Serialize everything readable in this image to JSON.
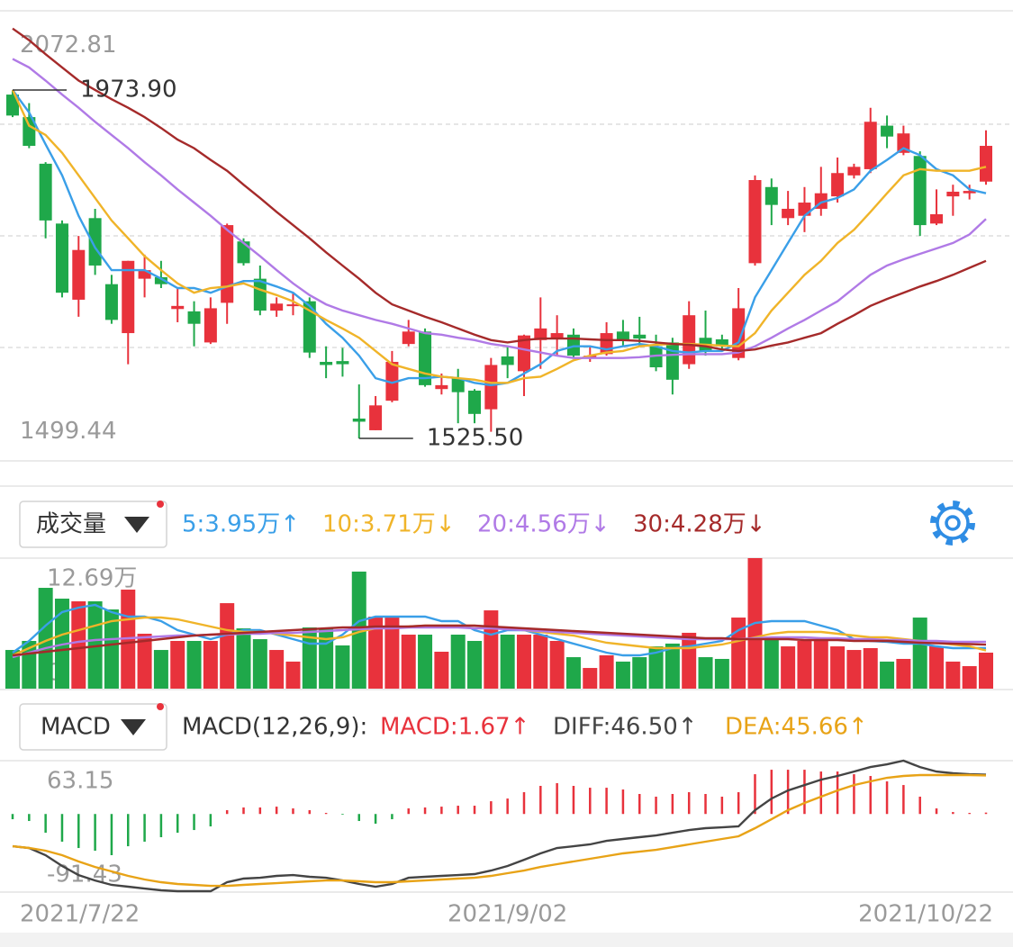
{
  "chart_data": [
    {
      "type": "candlestick",
      "categories": [
        "2021/7/22",
        null,
        null,
        null,
        null,
        null,
        null,
        null,
        null,
        null,
        null,
        null,
        null,
        null,
        null,
        null,
        null,
        null,
        null,
        null,
        null,
        null,
        null,
        null,
        null,
        null,
        null,
        null,
        null,
        null,
        "2021/9/02",
        null,
        null,
        null,
        null,
        null,
        null,
        null,
        null,
        null,
        null,
        null,
        null,
        null,
        null,
        null,
        null,
        null,
        null,
        null,
        null,
        null,
        null,
        null,
        null,
        null,
        null,
        null,
        null,
        "2021/10/22"
      ],
      "open": [
        1968,
        1939,
        1879,
        1802,
        1704,
        1809,
        1724,
        1661,
        1731,
        1733,
        1692,
        1689,
        1649,
        1700,
        1779,
        1731,
        1690,
        1696,
        1702,
        1624,
        1625,
        1551,
        1536,
        1574,
        1647,
        1663,
        1589,
        1603,
        1587,
        1563,
        1631,
        1612,
        1652,
        1655,
        1659,
        1629,
        1634,
        1663,
        1659,
        1644,
        1649,
        1621,
        1655,
        1653,
        1629,
        1751,
        1849,
        1809,
        1812,
        1821,
        1837,
        1864,
        1872,
        1928,
        1893,
        1889,
        1802,
        1837,
        1841,
        1856
      ],
      "high": [
        1973.9,
        1957,
        1881,
        1806,
        1786,
        1821,
        1736,
        1754,
        1762,
        1754,
        1719,
        1702,
        1707,
        1802,
        1783,
        1748,
        1707,
        1713,
        1707,
        1644,
        1642,
        1595,
        1580,
        1638,
        1678,
        1667,
        1609,
        1615,
        1589,
        1629,
        1644,
        1659,
        1707,
        1684,
        1667,
        1644,
        1675,
        1678,
        1682,
        1659,
        1655,
        1702,
        1690,
        1659,
        1719,
        1864,
        1860,
        1844,
        1849,
        1875,
        1887,
        1879,
        1951,
        1941,
        1928,
        1895,
        1846,
        1852,
        1852,
        1922
      ],
      "low": [
        1939,
        1899,
        1783,
        1707,
        1682,
        1736,
        1673,
        1621,
        1707,
        1719,
        1675,
        1644,
        1647,
        1673,
        1748,
        1684,
        1682,
        1684,
        1629,
        1603,
        1605,
        1525.5,
        1536,
        1572,
        1644,
        1592,
        1582,
        1545,
        1545,
        1534,
        1603,
        1580,
        1615,
        1632,
        1629,
        1624,
        1632,
        1644,
        1644,
        1612,
        1582,
        1615,
        1632,
        1638,
        1626,
        1748,
        1800,
        1800,
        1791,
        1812,
        1829,
        1860,
        1867,
        1899,
        1890,
        1786,
        1800,
        1812,
        1833,
        1852
      ],
      "close": [
        1941,
        1902,
        1806,
        1713,
        1768,
        1748,
        1678,
        1754,
        1742,
        1724,
        1696,
        1673,
        1693,
        1800,
        1751,
        1690,
        1699,
        1698,
        1636,
        1620,
        1621,
        1547,
        1568,
        1624,
        1663,
        1594,
        1594,
        1585,
        1557,
        1620,
        1620,
        1658,
        1667,
        1661,
        1632,
        1632,
        1661,
        1652,
        1654,
        1617,
        1601,
        1684,
        1638,
        1644,
        1693,
        1858,
        1826,
        1821,
        1829,
        1841,
        1867,
        1875,
        1933,
        1914,
        1918,
        1800,
        1814,
        1843,
        1844,
        1902
      ],
      "up_color": "#e8323c",
      "down_color": "#1fa84a",
      "ylim": [
        1499.44,
        2072.81
      ],
      "yticks": [
        2072.81,
        1499.44
      ],
      "annotations": [
        {
          "value": 1973.9,
          "label": "1973.90"
        },
        {
          "value": 1525.5,
          "label": "1525.50"
        }
      ],
      "series": [
        {
          "color": "#3a9fe8",
          "values": [
            1974,
            1945,
            1904,
            1864,
            1812,
            1771,
            1742,
            1742,
            1742,
            1731,
            1719,
            1719,
            1713,
            1721,
            1728,
            1728,
            1721,
            1713,
            1696,
            1673,
            1655,
            1632,
            1603,
            1597,
            1603,
            1603,
            1605,
            1603,
            1597,
            1594,
            1597,
            1609,
            1621,
            1638,
            1644,
            1644,
            1640,
            1644,
            1647,
            1644,
            1638,
            1636,
            1638,
            1638,
            1649,
            1707,
            1742,
            1777,
            1812,
            1829,
            1835,
            1846,
            1870,
            1884,
            1899,
            1890,
            1872,
            1864,
            1846,
            1841
          ]
        },
        {
          "color": "#f0b429",
          "values": [
            1974,
            1928,
            1916,
            1893,
            1864,
            1835,
            1806,
            1783,
            1760,
            1742,
            1725,
            1713,
            1719,
            1721,
            1725,
            1717,
            1710,
            1702,
            1690,
            1678,
            1667,
            1655,
            1638,
            1621,
            1615,
            1609,
            1605,
            1603,
            1601,
            1597,
            1597,
            1603,
            1605,
            1615,
            1626,
            1632,
            1636,
            1638,
            1644,
            1646,
            1647,
            1647,
            1646,
            1645,
            1644,
            1661,
            1690,
            1713,
            1736,
            1754,
            1777,
            1794,
            1817,
            1841,
            1864,
            1872,
            1870,
            1870,
            1870,
            1875
          ]
        },
        {
          "color": "#b07ae6",
          "values": [
            2014,
            2003,
            1986,
            1968,
            1951,
            1933,
            1916,
            1899,
            1881,
            1864,
            1846,
            1829,
            1812,
            1794,
            1777,
            1760,
            1742,
            1725,
            1710,
            1698,
            1690,
            1684,
            1678,
            1673,
            1667,
            1661,
            1659,
            1655,
            1652,
            1647,
            1644,
            1640,
            1636,
            1632,
            1629,
            1629,
            1629,
            1629,
            1630,
            1632,
            1633,
            1634,
            1634,
            1634,
            1636,
            1644,
            1655,
            1667,
            1678,
            1690,
            1702,
            1719,
            1736,
            1748,
            1756,
            1763,
            1770,
            1777,
            1788,
            1808
          ]
        },
        {
          "color": "#a52a2a",
          "values": [
            2053,
            2038,
            2020,
            2003,
            1986,
            1974,
            1962,
            1951,
            1939,
            1925,
            1910,
            1899,
            1884,
            1870,
            1852,
            1835,
            1817,
            1800,
            1783,
            1765,
            1748,
            1731,
            1713,
            1698,
            1690,
            1682,
            1675,
            1667,
            1659,
            1652,
            1649,
            1652,
            1654,
            1654,
            1654,
            1653,
            1652,
            1652,
            1651,
            1649,
            1647,
            1646,
            1644,
            1640,
            1638,
            1640,
            1645,
            1649,
            1655,
            1661,
            1673,
            1684,
            1696,
            1705,
            1713,
            1721,
            1728,
            1736,
            1745,
            1754
          ]
        }
      ]
    },
    {
      "type": "bar",
      "button": "成交量",
      "values": [
        3.76,
        4.64,
        9.8,
        8.75,
        8.49,
        8.49,
        7.7,
        9.63,
        5.34,
        3.76,
        4.64,
        4.64,
        4.64,
        8.31,
        5.86,
        4.81,
        3.76,
        2.63,
        5.95,
        5.86,
        4.2,
        11.38,
        7.0,
        7.0,
        5.25,
        5.25,
        3.59,
        5.25,
        4.64,
        7.61,
        5.25,
        5.25,
        5.25,
        4.64,
        3.06,
        2.01,
        3.24,
        2.63,
        3.06,
        4.11,
        4.38,
        5.43,
        3.06,
        2.89,
        6.91,
        12.69,
        4.81,
        4.11,
        4.64,
        4.64,
        4.11,
        3.76,
        3.94,
        2.63,
        2.89,
        6.91,
        4.11,
        2.63,
        2.19,
        3.5
      ],
      "ylim": [
        0,
        12.69
      ],
      "yticks": [
        {
          "value": 12.69,
          "label": "12.69万"
        },
        0
      ],
      "series": [
        {
          "name": "5:3.95万↑",
          "color": "#3a9fe8",
          "values": [
            3.5,
            4.64,
            6.13,
            7.44,
            7.88,
            8.14,
            7.44,
            7.0,
            7.0,
            6.56,
            5.69,
            5.25,
            4.81,
            5.25,
            5.69,
            5.69,
            5.25,
            4.81,
            4.38,
            4.38,
            5.25,
            6.56,
            7.0,
            7.0,
            7.0,
            7.0,
            6.56,
            6.56,
            5.69,
            5.25,
            5.69,
            5.69,
            5.25,
            4.81,
            4.38,
            3.94,
            3.5,
            3.24,
            3.24,
            3.5,
            3.94,
            4.11,
            4.38,
            4.64,
            5.69,
            6.39,
            6.56,
            6.56,
            6.56,
            6.13,
            5.69,
            4.81,
            4.64,
            4.55,
            4.38,
            4.38,
            4.11,
            3.94,
            3.94,
            3.95
          ]
        },
        {
          "name": "10:3.71万↓",
          "color": "#f0b429",
          "values": [
            3.24,
            3.94,
            4.64,
            5.25,
            5.69,
            6.13,
            6.56,
            6.74,
            6.91,
            6.91,
            6.74,
            6.39,
            6.04,
            5.69,
            5.51,
            5.51,
            5.34,
            5.16,
            4.99,
            4.81,
            4.99,
            5.51,
            5.86,
            5.95,
            6.04,
            6.13,
            6.13,
            6.13,
            6.13,
            5.95,
            5.86,
            5.69,
            5.51,
            5.34,
            5.16,
            4.81,
            4.46,
            4.29,
            4.11,
            3.94,
            3.94,
            3.94,
            4.11,
            4.29,
            4.64,
            4.99,
            5.34,
            5.51,
            5.51,
            5.51,
            5.34,
            5.16,
            4.99,
            4.99,
            4.81,
            4.64,
            4.46,
            4.29,
            4.11,
            3.71
          ]
        },
        {
          "name": "20:4.56万↓",
          "color": "#b07ae6",
          "values": [
            3.06,
            3.5,
            3.94,
            4.29,
            4.55,
            4.73,
            4.81,
            4.9,
            4.99,
            5.08,
            5.16,
            5.16,
            5.25,
            5.25,
            5.34,
            5.34,
            5.43,
            5.43,
            5.51,
            5.6,
            5.69,
            5.78,
            5.86,
            5.86,
            5.95,
            5.95,
            5.95,
            5.95,
            5.86,
            5.86,
            5.78,
            5.69,
            5.6,
            5.51,
            5.43,
            5.34,
            5.25,
            5.16,
            5.08,
            4.99,
            4.9,
            4.81,
            4.81,
            4.81,
            4.81,
            4.9,
            4.99,
            4.99,
            4.99,
            4.9,
            4.9,
            4.81,
            4.81,
            4.73,
            4.73,
            4.64,
            4.64,
            4.55,
            4.55,
            4.56
          ]
        },
        {
          "name": "30:4.28万↓",
          "color": "#a52a2a",
          "values": [
            3.24,
            3.41,
            3.59,
            3.76,
            3.94,
            4.11,
            4.29,
            4.46,
            4.64,
            4.81,
            4.99,
            5.16,
            5.25,
            5.34,
            5.43,
            5.51,
            5.6,
            5.69,
            5.78,
            5.86,
            5.95,
            5.95,
            6.04,
            6.04,
            6.04,
            6.13,
            6.13,
            6.13,
            6.13,
            6.04,
            5.95,
            5.86,
            5.78,
            5.69,
            5.6,
            5.51,
            5.43,
            5.34,
            5.25,
            5.16,
            5.08,
            4.99,
            4.9,
            4.9,
            4.81,
            4.81,
            4.81,
            4.81,
            4.73,
            4.73,
            4.73,
            4.64,
            4.64,
            4.64,
            4.55,
            4.46,
            4.41,
            4.37,
            4.33,
            4.28
          ]
        }
      ]
    },
    {
      "type": "macd",
      "button": "MACD",
      "title": "MACD(12,26,9):",
      "label": "MACD:1.67↑",
      "label_color": "#e8323c",
      "values": [
        -6.2,
        -8.3,
        -22.2,
        -32.8,
        -40.3,
        -43.5,
        -48.8,
        -38.2,
        -32.8,
        -27.5,
        -22.2,
        -19.0,
        -14.7,
        4.5,
        7.7,
        7.7,
        8.7,
        6.6,
        4.5,
        1.3,
        -0.9,
        -8.3,
        -11.5,
        -6.2,
        6.6,
        7.7,
        8.7,
        9.8,
        9.8,
        15.1,
        18.3,
        25.8,
        33.3,
        36.5,
        33.3,
        31.1,
        31.1,
        29.0,
        23.7,
        20.5,
        23.7,
        25.8,
        23.7,
        20.5,
        25.8,
        47.1,
        52.4,
        52.4,
        52.4,
        50.3,
        50.3,
        47.1,
        45.0,
        38.6,
        34.3,
        20.5,
        6.6,
        2.3,
        1.3,
        1.67
      ],
      "ylim": [
        -91.43,
        63.15
      ],
      "yticks": [
        63.15,
        -91.43
      ],
      "series": [
        {
          "name": "DIFF:46.50↑",
          "color": "#444444",
          "values": [
            -38.2,
            -40.3,
            -48.8,
            -61.6,
            -72.3,
            -78.7,
            -84.0,
            -86.1,
            -88.3,
            -90.4,
            -91.4,
            -91.4,
            -91.43,
            -80.8,
            -76.5,
            -75.5,
            -73.3,
            -72.3,
            -74.4,
            -75.5,
            -78.7,
            -82.9,
            -86.1,
            -82.9,
            -75.5,
            -74.4,
            -73.3,
            -72.3,
            -71.2,
            -67.0,
            -61.6,
            -54.2,
            -46.7,
            -40.3,
            -38.2,
            -36.0,
            -31.8,
            -29.6,
            -27.5,
            -25.4,
            -22.2,
            -19.0,
            -16.8,
            -15.8,
            -14.7,
            4.5,
            18.3,
            27.9,
            34.3,
            40.7,
            45.0,
            50.3,
            55.6,
            58.8,
            63.15,
            55.6,
            50.3,
            48.2,
            47.1,
            46.5
          ]
        },
        {
          "name": "DEA:45.66↑",
          "color": "#e8a317",
          "values": [
            -38.2,
            -40.3,
            -43.5,
            -48.8,
            -56.3,
            -62.7,
            -68.0,
            -73.3,
            -77.6,
            -80.8,
            -82.9,
            -84.0,
            -85.1,
            -85.1,
            -84.0,
            -82.9,
            -81.9,
            -80.8,
            -79.7,
            -78.7,
            -78.7,
            -79.7,
            -80.8,
            -80.8,
            -79.7,
            -78.7,
            -77.6,
            -76.5,
            -75.5,
            -73.3,
            -70.1,
            -67.0,
            -62.7,
            -59.5,
            -56.3,
            -53.1,
            -49.9,
            -46.7,
            -44.6,
            -42.5,
            -39.3,
            -36.0,
            -32.8,
            -29.6,
            -26.4,
            -16.8,
            -6.2,
            4.5,
            13.0,
            20.5,
            27.9,
            34.3,
            38.6,
            42.9,
            45.0,
            46.1,
            46.1,
            46.1,
            46.1,
            45.66
          ]
        }
      ]
    }
  ]
}
